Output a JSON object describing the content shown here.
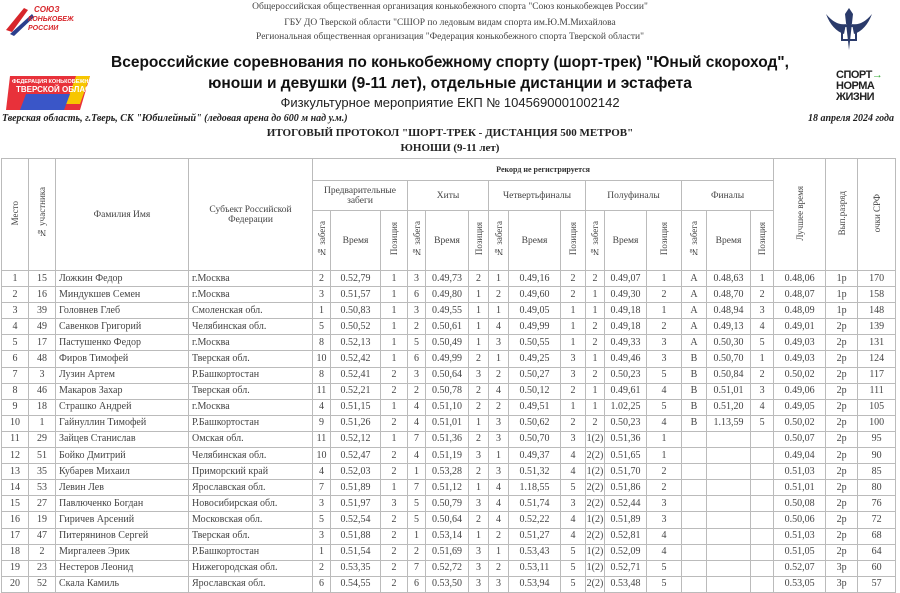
{
  "header": {
    "org_lines": [
      "Общероссийская общественная организация конькобежного спорта \"Союз конькобежцев России\"",
      "ГБУ ДО Тверской области \"СШОР по ледовым видам спорта им.Ю.М.Михайлова",
      "Региональная общественная организация \"Федерация конькобежного спорта Тверской области\""
    ],
    "title_line1": "Всероссийские соревнования по конькобежному спорту (шорт-трек) \"Юный скороход\",",
    "title_line2": "юноши и девушки (9-11 лет), отдельные дистанции и эстафета",
    "ekp": "Физкультурное мероприятие ЕКП № 1045690001002142",
    "place": "Тверская область, г.Тверь, СК \"Юбилейный\" (ледовая арена до 600 м над у.м.)",
    "date": "18 апреля 2024 года",
    "protocol": "ИТОГОВЫЙ ПРОТОКОЛ  \"ШОРТ-ТРЕК - ДИСТАНЦИЯ 500 МЕТРОВ\"",
    "group": "ЮНОШИ (9-11 лет)",
    "logos": {
      "skating_union": "СОЮЗ КОНЬКОБЕЖЦЕВ РОССИИ",
      "federation": "ФЕДЕРАЦИЯ КОНЬКОБЕЖНОГО СПОРТА ТВЕРСКОЙ ОБЛАСТИ",
      "sport_norm": "СПОРТ НОРМА ЖИЗНИ"
    },
    "accent": "#d7262b"
  },
  "table": {
    "headers": {
      "place": "Место",
      "bib": "№ участника",
      "name": "Фамилия Имя",
      "region": "Субъект Российской Федерации",
      "record": "Рекорд не регистрируется",
      "prelim": "Предварительные забеги",
      "heats": "Хиты",
      "qf": "Четвертьфиналы",
      "sf": "Полуфиналы",
      "final": "Финалы",
      "heat_no": "№ забега",
      "time": "Время",
      "position": "Позиция",
      "best": "Лучшее время",
      "rank": "Вып.разряд",
      "points": "очки СРФ"
    },
    "rows": [
      [
        "1",
        "15",
        "Ложкин Федор",
        "г.Москва",
        "2",
        "0.52,79",
        "1",
        "3",
        "0.49,73",
        "2",
        "1",
        "0.49,16",
        "2",
        "2",
        "0.49,07",
        "1",
        "A",
        "0.48,63",
        "1",
        "0.48,06",
        "1р",
        "170"
      ],
      [
        "2",
        "16",
        "Миндукшев Семен",
        "г.Москва",
        "3",
        "0.51,57",
        "1",
        "6",
        "0.49,80",
        "1",
        "2",
        "0.49,60",
        "2",
        "1",
        "0.49,30",
        "2",
        "A",
        "0.48,70",
        "2",
        "0.48,07",
        "1р",
        "158"
      ],
      [
        "3",
        "39",
        "Головнев Глеб",
        "Смоленская обл.",
        "1",
        "0.50,83",
        "1",
        "3",
        "0.49,55",
        "1",
        "1",
        "0.49,05",
        "1",
        "1",
        "0.49,18",
        "1",
        "A",
        "0.48,94",
        "3",
        "0.48,09",
        "1р",
        "148"
      ],
      [
        "4",
        "49",
        "Савенков Григорий",
        "Челябинская обл.",
        "5",
        "0.50,52",
        "1",
        "2",
        "0.50,61",
        "1",
        "4",
        "0.49,99",
        "1",
        "2",
        "0.49,18",
        "2",
        "A",
        "0.49,13",
        "4",
        "0.49,01",
        "2р",
        "139"
      ],
      [
        "5",
        "17",
        "Пастушенко Федор",
        "г.Москва",
        "8",
        "0.52,13",
        "1",
        "5",
        "0.50,49",
        "1",
        "3",
        "0.50,55",
        "1",
        "2",
        "0.49,33",
        "3",
        "A",
        "0.50,30",
        "5",
        "0.49,03",
        "2р",
        "131"
      ],
      [
        "6",
        "48",
        "Фиров Тимофей",
        "Тверская обл.",
        "10",
        "0.52,42",
        "1",
        "6",
        "0.49,99",
        "2",
        "1",
        "0.49,25",
        "3",
        "1",
        "0.49,46",
        "3",
        "B",
        "0.50,70",
        "1",
        "0.49,03",
        "2р",
        "124"
      ],
      [
        "7",
        "3",
        "Лузин Артем",
        "Р.Башкортостан",
        "8",
        "0.52,41",
        "2",
        "3",
        "0.50,64",
        "3",
        "2",
        "0.50,27",
        "3",
        "2",
        "0.50,23",
        "5",
        "B",
        "0.50,84",
        "2",
        "0.50,02",
        "2р",
        "117"
      ],
      [
        "8",
        "46",
        "Макаров Захар",
        "Тверская обл.",
        "11",
        "0.52,21",
        "2",
        "2",
        "0.50,78",
        "2",
        "4",
        "0.50,12",
        "2",
        "1",
        "0.49,61",
        "4",
        "B",
        "0.51,01",
        "3",
        "0.49,06",
        "2р",
        "111"
      ],
      [
        "9",
        "18",
        "Страшко Андрей",
        "г.Москва",
        "4",
        "0.51,15",
        "1",
        "4",
        "0.51,10",
        "2",
        "2",
        "0.49,51",
        "1",
        "1",
        "1.02,25",
        "5",
        "B",
        "0.51,20",
        "4",
        "0.49,05",
        "2р",
        "105"
      ],
      [
        "10",
        "1",
        "Гайнуллин Тимофей",
        "Р.Башкортостан",
        "9",
        "0.51,26",
        "2",
        "4",
        "0.51,01",
        "1",
        "3",
        "0.50,62",
        "2",
        "2",
        "0.50,23",
        "4",
        "B",
        "1.13,59",
        "5",
        "0.50,02",
        "2р",
        "100"
      ],
      [
        "11",
        "29",
        "Зайцев Станислав",
        "Омская обл.",
        "11",
        "0.52,12",
        "1",
        "7",
        "0.51,36",
        "2",
        "3",
        "0.50,70",
        "3",
        "1(2)",
        "0.51,36",
        "1",
        "",
        "",
        "",
        "0.50,07",
        "2р",
        "95"
      ],
      [
        "12",
        "51",
        "Бойко Дмитрий",
        "Челябинская обл.",
        "10",
        "0.52,47",
        "2",
        "4",
        "0.51,19",
        "3",
        "1",
        "0.49,37",
        "4",
        "2(2)",
        "0.51,65",
        "1",
        "",
        "",
        "",
        "0.49,04",
        "2р",
        "90"
      ],
      [
        "13",
        "35",
        "Кубарев Михаил",
        "Приморский край",
        "4",
        "0.52,03",
        "2",
        "1",
        "0.53,28",
        "2",
        "3",
        "0.51,32",
        "4",
        "1(2)",
        "0.51,70",
        "2",
        "",
        "",
        "",
        "0.51,03",
        "2р",
        "85"
      ],
      [
        "14",
        "53",
        "Левин Лев",
        "Ярославская обл.",
        "7",
        "0.51,89",
        "1",
        "7",
        "0.51,12",
        "1",
        "4",
        "1.18,55",
        "5",
        "2(2)",
        "0.51,86",
        "2",
        "",
        "",
        "",
        "0.51,01",
        "2р",
        "80"
      ],
      [
        "15",
        "27",
        "Павлюченко Богдан",
        "Новосибирская обл.",
        "3",
        "0.51,97",
        "3",
        "5",
        "0.50,79",
        "3",
        "4",
        "0.51,74",
        "3",
        "2(2)",
        "0.52,44",
        "3",
        "",
        "",
        "",
        "0.50,08",
        "2р",
        "76"
      ],
      [
        "16",
        "19",
        "Гиричев Арсений",
        "Московская обл.",
        "5",
        "0.52,54",
        "2",
        "5",
        "0.50,64",
        "2",
        "4",
        "0.52,22",
        "4",
        "1(2)",
        "0.51,89",
        "3",
        "",
        "",
        "",
        "0.50,06",
        "2р",
        "72"
      ],
      [
        "17",
        "47",
        "Питерянинов Сергей",
        "Тверская обл.",
        "3",
        "0.51,88",
        "2",
        "1",
        "0.53,14",
        "1",
        "2",
        "0.51,27",
        "4",
        "2(2)",
        "0.52,81",
        "4",
        "",
        "",
        "",
        "0.51,03",
        "2р",
        "68"
      ],
      [
        "18",
        "2",
        "Миргалеев Эрик",
        "Р.Башкортостан",
        "1",
        "0.51,54",
        "2",
        "2",
        "0.51,69",
        "3",
        "1",
        "0.53,43",
        "5",
        "1(2)",
        "0.52,09",
        "4",
        "",
        "",
        "",
        "0.51,05",
        "2р",
        "64"
      ],
      [
        "19",
        "23",
        "Нестеров Леонид",
        "Нижегородская обл.",
        "2",
        "0.53,35",
        "2",
        "7",
        "0.52,72",
        "3",
        "2",
        "0.53,11",
        "5",
        "1(2)",
        "0.52,71",
        "5",
        "",
        "",
        "",
        "0.52,07",
        "3р",
        "60"
      ],
      [
        "20",
        "52",
        "Скала Камиль",
        "Ярославская обл.",
        "6",
        "0.54,55",
        "2",
        "6",
        "0.53,50",
        "3",
        "3",
        "0.53,94",
        "5",
        "2(2)",
        "0.53,48",
        "5",
        "",
        "",
        "",
        "0.53,05",
        "3р",
        "57"
      ]
    ]
  }
}
